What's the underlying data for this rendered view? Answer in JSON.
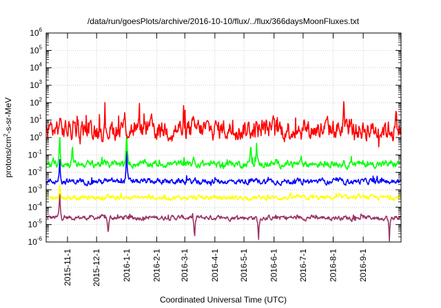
{
  "chart_data": {
    "type": "line",
    "title": "/data/run/goesPlots/archive/2016-10-10/flux/../flux/366daysMoonFluxes.txt",
    "xlabel": "Coordinated Universal Time (UTC)",
    "ylabel_prefix": "protons/cm",
    "ylabel_exp": "2",
    "ylabel_suffix": "-s-sr-MeV",
    "yscale": "log",
    "ylim": [
      1e-06,
      1000000.0
    ],
    "xlim": [
      "2015-10-10",
      "2016-10-10"
    ],
    "grid": true,
    "x_ticks": [
      "2015-11-1",
      "2015-12-1",
      "2016-1-1",
      "2016-2-1",
      "2016-3-1",
      "2016-4-1",
      "2016-5-1",
      "2016-6-1",
      "2016-7-1",
      "2016-8-1",
      "2016-9-1"
    ],
    "y_tick_exponents": [
      "-6",
      "-5",
      "-4",
      "-3",
      "-2",
      "-1",
      "0",
      "1",
      "2",
      "3",
      "4",
      "5",
      "6"
    ],
    "series": [
      {
        "color": "#993366",
        "baseline": 2.5e-05,
        "spread": 0.1,
        "events": [
          {
            "x": "2015-10-24",
            "y": 0.001
          },
          {
            "x": "2015-12-13",
            "y": 2e-06
          },
          {
            "x": "2016-3-11",
            "y": 1e-06
          },
          {
            "x": "2016-5-16",
            "y": 1e-06
          },
          {
            "x": "2016-9-28",
            "y": 1e-06
          }
        ]
      },
      {
        "color": "#ffff00",
        "baseline": 0.00035,
        "spread": 0.1,
        "events": [
          {
            "x": "2015-10-24",
            "y": 0.003
          }
        ]
      },
      {
        "color": "#0000ff",
        "baseline": 0.003,
        "spread": 0.12,
        "events": [
          {
            "x": "2015-10-24",
            "y": 0.1
          },
          {
            "x": "2016-1-1",
            "y": 0.4
          }
        ]
      },
      {
        "color": "#00ff00",
        "baseline": 0.03,
        "spread": 0.15,
        "events": [
          {
            "x": "2015-10-24",
            "y": 2.0
          },
          {
            "x": "2015-11-6",
            "y": 0.5
          },
          {
            "x": "2016-1-1",
            "y": 3.0
          },
          {
            "x": "2016-3-10",
            "y": 0.1
          },
          {
            "x": "2016-5-8",
            "y": 0.7
          },
          {
            "x": "2016-5-14",
            "y": 0.5
          }
        ]
      },
      {
        "color": "#ff0000",
        "baseline": 3.0,
        "spread": 0.45,
        "events": [
          {
            "x": "2015-10-24",
            "y": 15
          },
          {
            "x": "2015-12-30",
            "y": 30
          },
          {
            "x": "2016-8-12",
            "y": 200
          },
          {
            "x": "2016-10-5",
            "y": 50
          }
        ]
      }
    ]
  }
}
